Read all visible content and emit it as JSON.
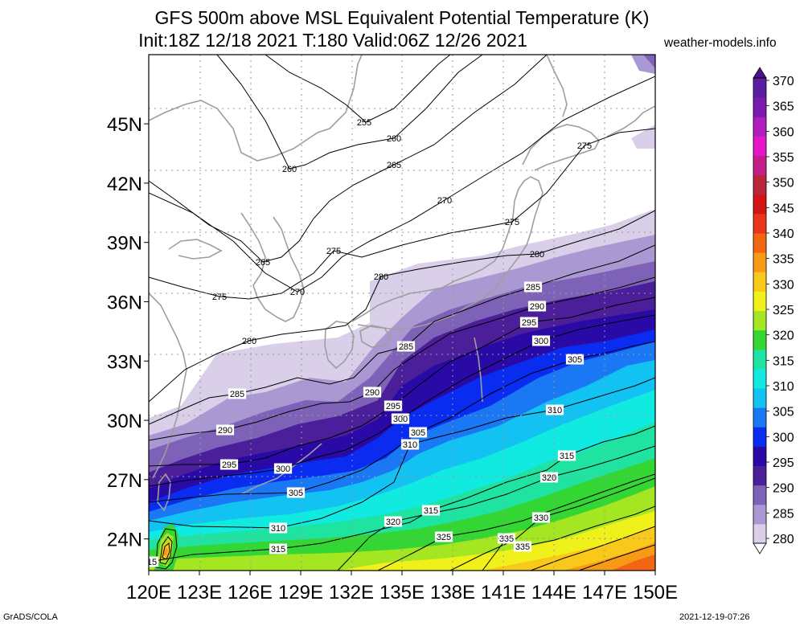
{
  "header": {
    "title_line1": "GFS 500m above MSL Equivalent Potential Temperature (K)",
    "title_line2": "Init:18Z 12/18 2021 T:180 Valid:06Z 12/26 2021",
    "site": "weather-models.info"
  },
  "footer": {
    "left": "GrADS/COLA",
    "right": "2021-12-19-07:26"
  },
  "chart_data": {
    "type": "heatmap",
    "title": "GFS 500m above MSL Equivalent Potential Temperature (K)",
    "subtitle": "Init:18Z 12/18 2021 T:180 Valid:06Z 12/26 2021",
    "x_ticks": [
      "120E",
      "123E",
      "126E",
      "129E",
      "132E",
      "135E",
      "138E",
      "141E",
      "144E",
      "147E",
      "150E"
    ],
    "x_values": [
      120,
      123,
      126,
      129,
      132,
      135,
      138,
      141,
      144,
      147,
      150
    ],
    "y_ticks": [
      "24N",
      "27N",
      "30N",
      "33N",
      "36N",
      "39N",
      "42N",
      "45N"
    ],
    "y_values": [
      24,
      27,
      30,
      33,
      36,
      39,
      42,
      45
    ],
    "xlim": [
      120,
      150
    ],
    "ylim": [
      22.4,
      48.5
    ],
    "grid": true,
    "colorbar": {
      "levels": [
        280,
        285,
        290,
        295,
        300,
        305,
        310,
        315,
        320,
        325,
        330,
        335,
        340,
        345,
        350,
        355,
        360,
        365,
        370
      ],
      "colors": [
        "#d9cfe9",
        "#a998d2",
        "#7e62b8",
        "#4b1f9a",
        "#2a0aa6",
        "#0a2cf0",
        "#1a78f5",
        "#12c2f2",
        "#10eae0",
        "#1fe3a1",
        "#33d633",
        "#a4e621",
        "#f0f01a",
        "#f8c81a",
        "#f79a16",
        "#f26513",
        "#e9361a",
        "#d21414",
        "#b9263a",
        "#c41e88",
        "#e416c8",
        "#b01ec0",
        "#7b1ab0",
        "#5a1ea0"
      ]
    },
    "contours": [
      {
        "level": 255,
        "labels": [
          [
            453,
            152
          ]
        ]
      },
      {
        "level": 260,
        "labels": [
          [
            490,
            172
          ],
          [
            360,
            210
          ]
        ]
      },
      {
        "level": 265,
        "labels": [
          [
            490,
            205
          ],
          [
            327,
            326
          ]
        ]
      },
      {
        "level": 270,
        "labels": [
          [
            553,
            249
          ],
          [
            370,
            363
          ]
        ]
      },
      {
        "level": 275,
        "labels": [
          [
            727,
            181
          ],
          [
            637,
            276
          ],
          [
            415,
            312
          ],
          [
            273,
            369
          ]
        ]
      },
      {
        "level": 280,
        "labels": [
          [
            668,
            316
          ],
          [
            474,
            344
          ],
          [
            310,
            424
          ]
        ]
      },
      {
        "level": 285,
        "labels": [
          [
            663,
            357
          ],
          [
            505,
            431
          ],
          [
            295,
            490
          ]
        ]
      },
      {
        "level": 290,
        "labels": [
          [
            668,
            381
          ],
          [
            463,
            488
          ],
          [
            280,
            535
          ]
        ]
      },
      {
        "level": 295,
        "labels": [
          [
            658,
            401
          ],
          [
            489,
            505
          ],
          [
            285,
            578
          ]
        ]
      },
      {
        "level": 300,
        "labels": [
          [
            673,
            424
          ],
          [
            498,
            521
          ],
          [
            352,
            583
          ]
        ]
      },
      {
        "level": 305,
        "labels": [
          [
            715,
            447
          ],
          [
            520,
            538
          ],
          [
            368,
            613
          ]
        ]
      },
      {
        "level": 310,
        "labels": [
          [
            690,
            510
          ],
          [
            510,
            553
          ],
          [
            346,
            657
          ]
        ]
      },
      {
        "level": 315,
        "labels": [
          [
            705,
            567
          ],
          [
            536,
            635
          ],
          [
            346,
            683
          ],
          [
            186,
            699
          ]
        ]
      },
      {
        "level": 320,
        "labels": [
          [
            683,
            594
          ],
          [
            489,
            649
          ]
        ]
      },
      {
        "level": 325,
        "labels": [
          [
            552,
            668
          ]
        ]
      },
      {
        "level": 330,
        "labels": [
          [
            673,
            644
          ]
        ]
      },
      {
        "level": 335,
        "labels": [
          [
            630,
            670
          ],
          [
            650,
            680
          ]
        ]
      }
    ]
  }
}
